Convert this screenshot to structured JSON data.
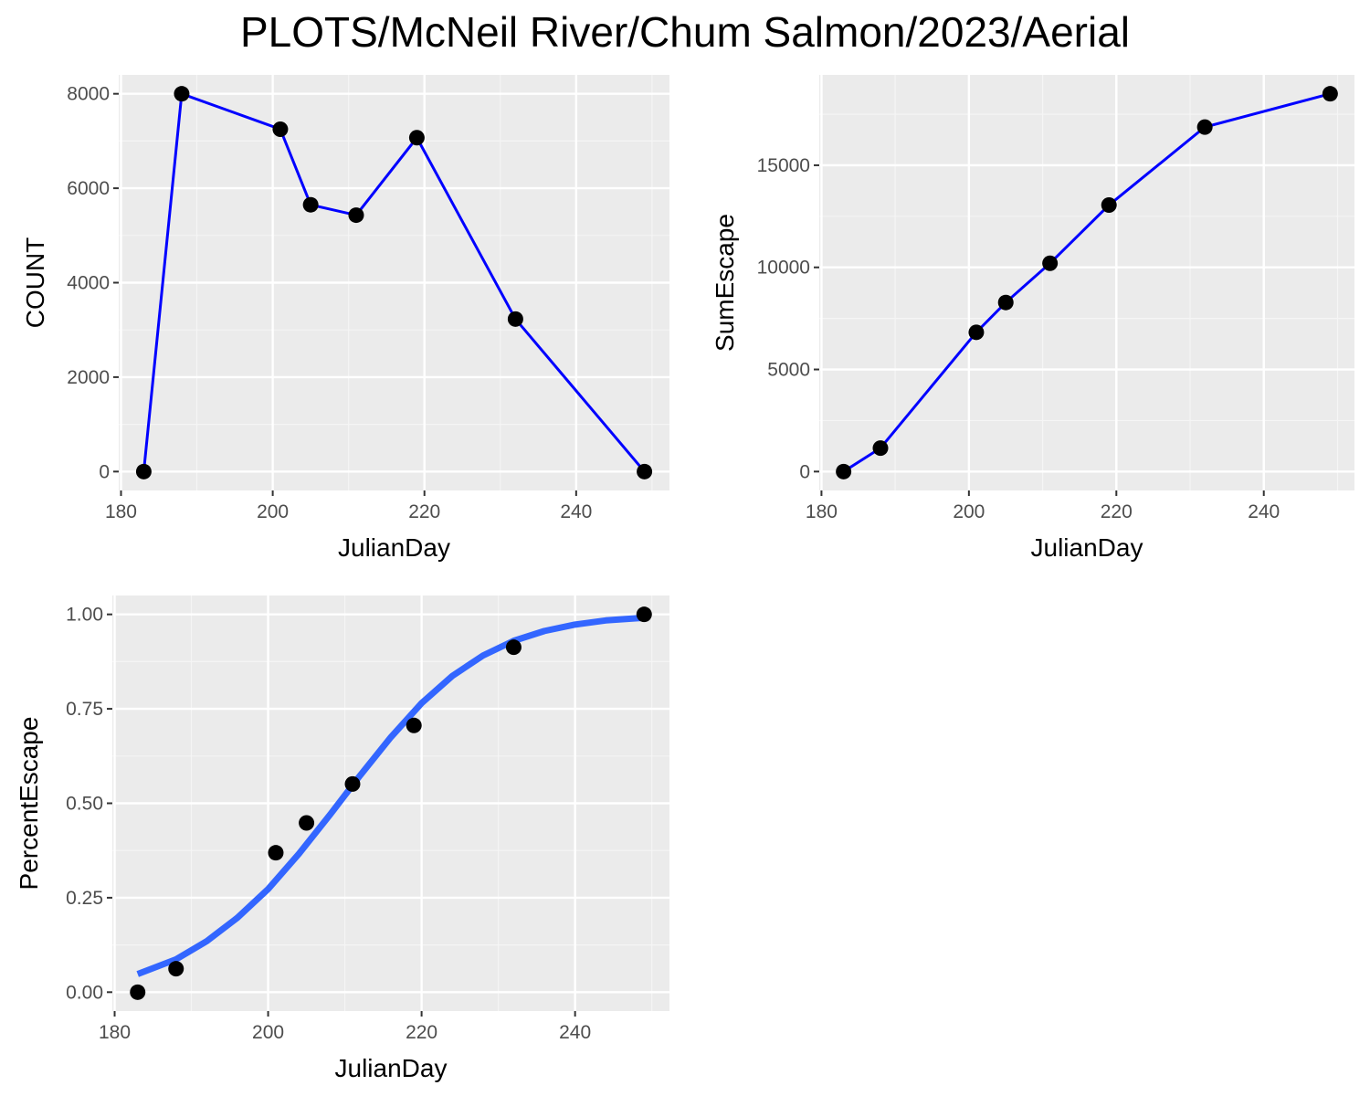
{
  "title": "PLOTS/McNeil River/Chum Salmon/2023/Aerial",
  "colors": {
    "panel_bg": "#EBEBEB",
    "grid_major": "#FFFFFF",
    "grid_minor": "#F5F5F5",
    "line": "#0000FF",
    "smooth": "#3366FF",
    "point": "#000000",
    "tick_text": "#4D4D4D"
  },
  "chart_data": [
    {
      "type": "line",
      "xlabel": "JulianDay",
      "ylabel": "COUNT",
      "xlim": [
        179.7,
        252.3
      ],
      "ylim": [
        -400,
        8400
      ],
      "xticks": [
        180,
        200,
        220,
        240
      ],
      "xtick_labels": [
        "180",
        "200",
        "220",
        "240"
      ],
      "yticks": [
        0,
        2000,
        4000,
        6000,
        8000
      ],
      "ytick_labels": [
        "0",
        "2000",
        "4000",
        "6000",
        "8000"
      ],
      "grid": true,
      "series": [
        {
          "x": [
            183,
            188,
            201,
            205,
            211,
            219,
            232,
            249
          ],
          "y": [
            0,
            8000,
            7250,
            5650,
            5430,
            7070,
            3230,
            0
          ]
        }
      ]
    },
    {
      "type": "line",
      "xlabel": "JulianDay",
      "ylabel": "SumEscape",
      "xlim": [
        179.7,
        252.3
      ],
      "ylim": [
        -925,
        19425
      ],
      "xticks": [
        180,
        200,
        220,
        240
      ],
      "xtick_labels": [
        "180",
        "200",
        "220",
        "240"
      ],
      "yticks": [
        0,
        5000,
        10000,
        15000
      ],
      "ytick_labels": [
        "0",
        "5000",
        "10000",
        "15000"
      ],
      "grid": true,
      "series": [
        {
          "x": [
            183,
            188,
            201,
            205,
            211,
            219,
            232,
            249
          ],
          "y": [
            0,
            1150,
            6820,
            8280,
            10200,
            13050,
            16870,
            18500
          ]
        }
      ]
    },
    {
      "type": "scatter",
      "xlabel": "JulianDay",
      "ylabel": "PercentEscape",
      "xlim": [
        179.7,
        252.3
      ],
      "ylim": [
        -0.05,
        1.05
      ],
      "xticks": [
        180,
        200,
        220,
        240
      ],
      "xtick_labels": [
        "180",
        "200",
        "220",
        "240"
      ],
      "yticks": [
        0,
        0.25,
        0.5,
        0.75,
        1.0
      ],
      "ytick_labels": [
        "0.00",
        "0.25",
        "0.50",
        "0.75",
        "1.00"
      ],
      "grid": true,
      "series": [
        {
          "x": [
            183,
            188,
            201,
            205,
            211,
            219,
            232,
            249
          ],
          "y": [
            0.0,
            0.062,
            0.369,
            0.448,
            0.551,
            0.706,
            0.913,
            1.0
          ]
        }
      ],
      "fit_curve": {
        "x": [
          183,
          188,
          192,
          196,
          200,
          204,
          208,
          212,
          216,
          220,
          224,
          228,
          232,
          236,
          240,
          244,
          249
        ],
        "y": [
          0.048,
          0.087,
          0.135,
          0.197,
          0.273,
          0.366,
          0.468,
          0.574,
          0.675,
          0.765,
          0.837,
          0.891,
          0.93,
          0.956,
          0.973,
          0.984,
          0.991
        ]
      }
    }
  ]
}
